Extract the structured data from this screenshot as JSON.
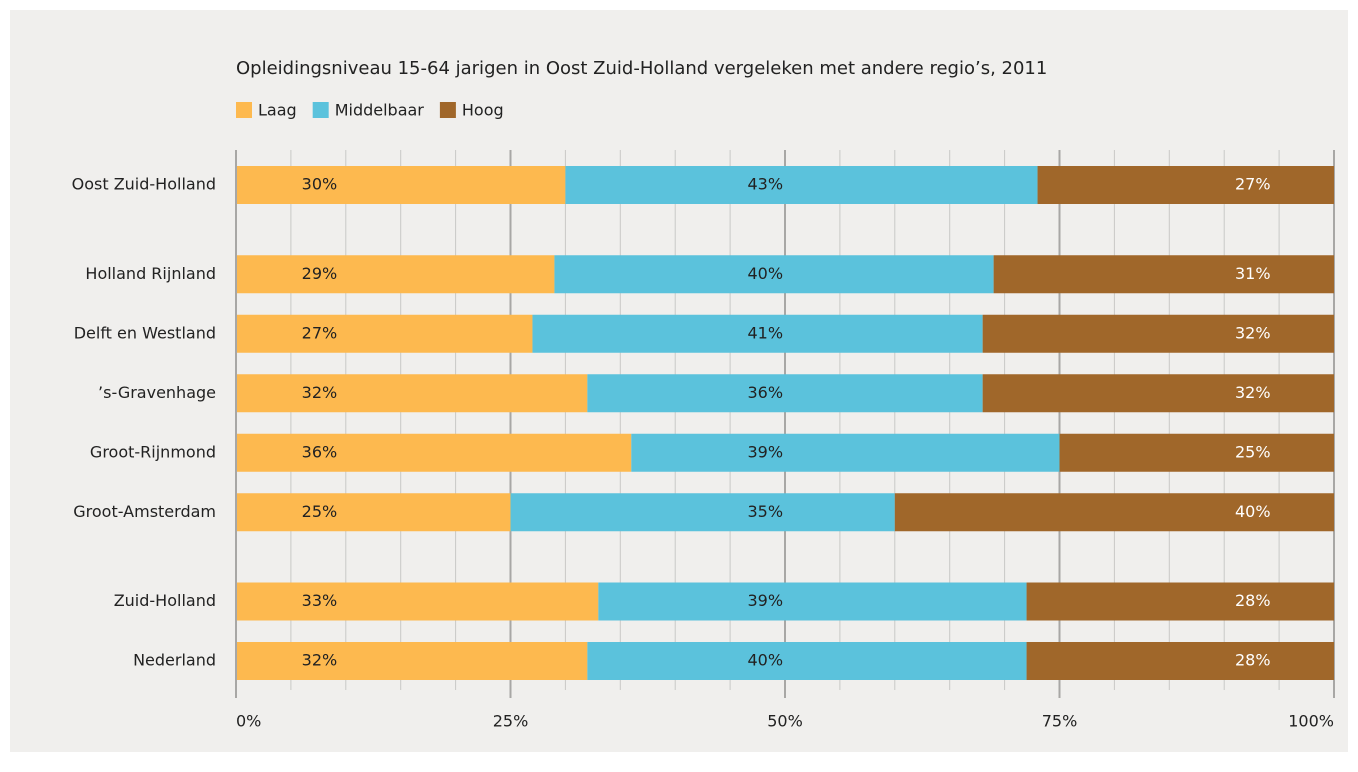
{
  "chart_data": {
    "type": "stacked_barh",
    "title": "Opleidingsniveau 15-64 jarigen in Oost Zuid-Holland vergeleken met andere regio’s, 2011",
    "categories": [
      "Oost Zuid-Holland",
      null,
      "Holland Rijnland",
      "Delft en Westland",
      "’s-Gravenhage",
      "Groot-Rijnmond",
      "Groot-Amsterdam",
      null,
      "Zuid-Holland",
      "Nederland"
    ],
    "series": [
      {
        "name": "Laag",
        "color": "#fdb94f",
        "values": [
          30,
          null,
          29,
          27,
          32,
          36,
          25,
          null,
          33,
          32
        ],
        "value_labels": [
          "30%",
          null,
          "29%",
          "27%",
          "32%",
          "36%",
          "25%",
          null,
          "33%",
          "32%"
        ]
      },
      {
        "name": "Middelbaar",
        "color": "#5bc2dc",
        "values": [
          43,
          null,
          40,
          41,
          36,
          39,
          35,
          null,
          39,
          40
        ],
        "value_labels": [
          "43%",
          null,
          "40%",
          "41%",
          "36%",
          "39%",
          "35%",
          null,
          "39%",
          "40%"
        ]
      },
      {
        "name": "Hoog",
        "color": "#a0672a",
        "values": [
          27,
          null,
          31,
          32,
          32,
          25,
          40,
          null,
          28,
          28
        ],
        "value_labels": [
          "27%",
          null,
          "31%",
          "32%",
          "32%",
          "25%",
          "40%",
          null,
          "28%",
          "28%"
        ]
      }
    ],
    "xlim": [
      0,
      100
    ],
    "xticks": [
      {
        "value": 0,
        "label": "0%"
      },
      {
        "value": 25,
        "label": "25%"
      },
      {
        "value": 50,
        "label": "50%"
      },
      {
        "value": 75,
        "label": "75%"
      },
      {
        "value": 100,
        "label": "100%"
      }
    ],
    "minor_xticks": [
      5,
      10,
      15,
      20,
      30,
      35,
      40,
      45,
      55,
      60,
      65,
      70,
      80,
      85,
      90,
      95
    ],
    "grid": true,
    "legend": "top-left"
  }
}
